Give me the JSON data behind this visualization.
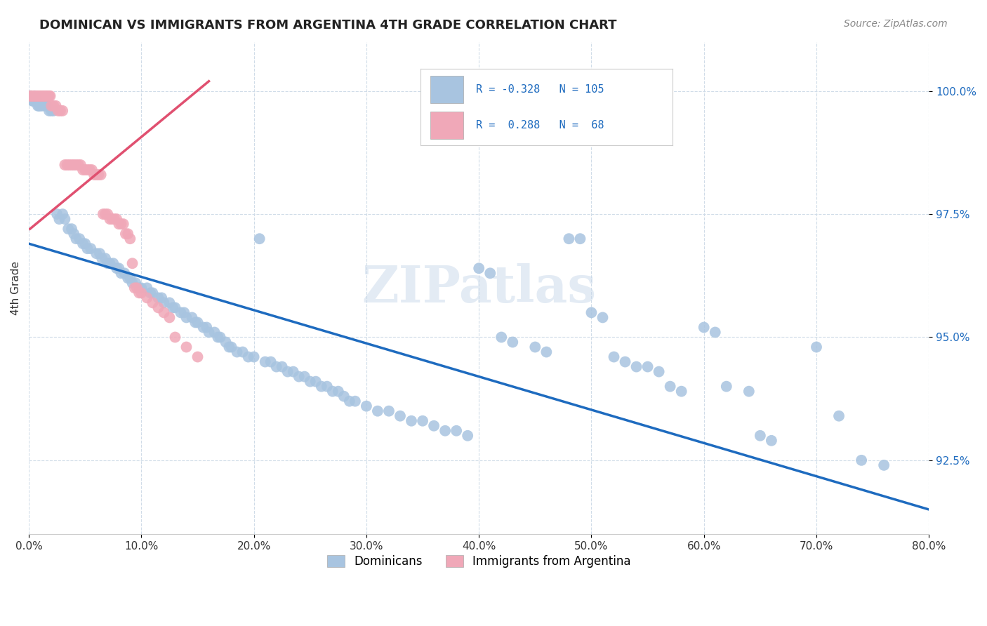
{
  "title": "DOMINICAN VS IMMIGRANTS FROM ARGENTINA 4TH GRADE CORRELATION CHART",
  "source": "Source: ZipAtlas.com",
  "ylabel": "4th Grade",
  "ytick_values": [
    0.925,
    0.95,
    0.975,
    1.0
  ],
  "xmin": 0.0,
  "xmax": 0.8,
  "ymin": 0.91,
  "ymax": 1.01,
  "blue_color": "#a8c4e0",
  "pink_color": "#f0a8b8",
  "blue_line_color": "#1e6bbf",
  "pink_line_color": "#e05070",
  "legend_text_color": "#1e6bbf",
  "watermark": "ZIPatlas",
  "blue_scatter": [
    [
      0.001,
      0.999
    ],
    [
      0.002,
      0.999
    ],
    [
      0.003,
      0.998
    ],
    [
      0.004,
      0.998
    ],
    [
      0.005,
      0.999
    ],
    [
      0.006,
      0.998
    ],
    [
      0.007,
      0.998
    ],
    [
      0.008,
      0.997
    ],
    [
      0.009,
      0.997
    ],
    [
      0.01,
      0.997
    ],
    [
      0.012,
      0.997
    ],
    [
      0.015,
      0.997
    ],
    [
      0.016,
      0.997
    ],
    [
      0.018,
      0.996
    ],
    [
      0.02,
      0.996
    ],
    [
      0.022,
      0.996
    ],
    [
      0.025,
      0.975
    ],
    [
      0.027,
      0.974
    ],
    [
      0.03,
      0.975
    ],
    [
      0.032,
      0.974
    ],
    [
      0.035,
      0.972
    ],
    [
      0.038,
      0.972
    ],
    [
      0.04,
      0.971
    ],
    [
      0.042,
      0.97
    ],
    [
      0.045,
      0.97
    ],
    [
      0.048,
      0.969
    ],
    [
      0.05,
      0.969
    ],
    [
      0.052,
      0.968
    ],
    [
      0.055,
      0.968
    ],
    [
      0.06,
      0.967
    ],
    [
      0.063,
      0.967
    ],
    [
      0.065,
      0.966
    ],
    [
      0.068,
      0.966
    ],
    [
      0.07,
      0.965
    ],
    [
      0.072,
      0.965
    ],
    [
      0.075,
      0.965
    ],
    [
      0.078,
      0.964
    ],
    [
      0.08,
      0.964
    ],
    [
      0.082,
      0.963
    ],
    [
      0.085,
      0.963
    ],
    [
      0.088,
      0.962
    ],
    [
      0.09,
      0.962
    ],
    [
      0.092,
      0.961
    ],
    [
      0.095,
      0.961
    ],
    [
      0.098,
      0.96
    ],
    [
      0.1,
      0.96
    ],
    [
      0.105,
      0.96
    ],
    [
      0.108,
      0.959
    ],
    [
      0.11,
      0.959
    ],
    [
      0.115,
      0.958
    ],
    [
      0.118,
      0.958
    ],
    [
      0.12,
      0.957
    ],
    [
      0.125,
      0.957
    ],
    [
      0.128,
      0.956
    ],
    [
      0.13,
      0.956
    ],
    [
      0.135,
      0.955
    ],
    [
      0.138,
      0.955
    ],
    [
      0.14,
      0.954
    ],
    [
      0.145,
      0.954
    ],
    [
      0.148,
      0.953
    ],
    [
      0.15,
      0.953
    ],
    [
      0.155,
      0.952
    ],
    [
      0.158,
      0.952
    ],
    [
      0.16,
      0.951
    ],
    [
      0.165,
      0.951
    ],
    [
      0.168,
      0.95
    ],
    [
      0.17,
      0.95
    ],
    [
      0.175,
      0.949
    ],
    [
      0.178,
      0.948
    ],
    [
      0.18,
      0.948
    ],
    [
      0.185,
      0.947
    ],
    [
      0.19,
      0.947
    ],
    [
      0.195,
      0.946
    ],
    [
      0.2,
      0.946
    ],
    [
      0.205,
      0.97
    ],
    [
      0.21,
      0.945
    ],
    [
      0.215,
      0.945
    ],
    [
      0.22,
      0.944
    ],
    [
      0.225,
      0.944
    ],
    [
      0.23,
      0.943
    ],
    [
      0.235,
      0.943
    ],
    [
      0.24,
      0.942
    ],
    [
      0.245,
      0.942
    ],
    [
      0.25,
      0.941
    ],
    [
      0.255,
      0.941
    ],
    [
      0.26,
      0.94
    ],
    [
      0.265,
      0.94
    ],
    [
      0.27,
      0.939
    ],
    [
      0.275,
      0.939
    ],
    [
      0.28,
      0.938
    ],
    [
      0.285,
      0.937
    ],
    [
      0.29,
      0.937
    ],
    [
      0.3,
      0.936
    ],
    [
      0.31,
      0.935
    ],
    [
      0.32,
      0.935
    ],
    [
      0.33,
      0.934
    ],
    [
      0.34,
      0.933
    ],
    [
      0.35,
      0.933
    ],
    [
      0.36,
      0.932
    ],
    [
      0.37,
      0.931
    ],
    [
      0.38,
      0.931
    ],
    [
      0.39,
      0.93
    ],
    [
      0.4,
      0.964
    ],
    [
      0.41,
      0.963
    ],
    [
      0.42,
      0.95
    ],
    [
      0.43,
      0.949
    ],
    [
      0.45,
      0.948
    ],
    [
      0.46,
      0.947
    ],
    [
      0.48,
      0.97
    ],
    [
      0.49,
      0.97
    ],
    [
      0.5,
      0.955
    ],
    [
      0.51,
      0.954
    ],
    [
      0.52,
      0.946
    ],
    [
      0.53,
      0.945
    ],
    [
      0.54,
      0.944
    ],
    [
      0.55,
      0.944
    ],
    [
      0.56,
      0.943
    ],
    [
      0.57,
      0.94
    ],
    [
      0.58,
      0.939
    ],
    [
      0.6,
      0.952
    ],
    [
      0.61,
      0.951
    ],
    [
      0.62,
      0.94
    ],
    [
      0.64,
      0.939
    ],
    [
      0.65,
      0.93
    ],
    [
      0.66,
      0.929
    ],
    [
      0.7,
      0.948
    ],
    [
      0.72,
      0.934
    ],
    [
      0.74,
      0.925
    ],
    [
      0.76,
      0.924
    ]
  ],
  "pink_scatter": [
    [
      0.001,
      0.999
    ],
    [
      0.002,
      0.999
    ],
    [
      0.003,
      0.999
    ],
    [
      0.004,
      0.999
    ],
    [
      0.005,
      0.999
    ],
    [
      0.006,
      0.999
    ],
    [
      0.007,
      0.999
    ],
    [
      0.008,
      0.999
    ],
    [
      0.009,
      0.999
    ],
    [
      0.01,
      0.999
    ],
    [
      0.011,
      0.999
    ],
    [
      0.012,
      0.999
    ],
    [
      0.013,
      0.999
    ],
    [
      0.014,
      0.999
    ],
    [
      0.015,
      0.999
    ],
    [
      0.016,
      0.999
    ],
    [
      0.017,
      0.999
    ],
    [
      0.018,
      0.999
    ],
    [
      0.019,
      0.999
    ],
    [
      0.02,
      0.997
    ],
    [
      0.022,
      0.997
    ],
    [
      0.024,
      0.997
    ],
    [
      0.026,
      0.996
    ],
    [
      0.028,
      0.996
    ],
    [
      0.03,
      0.996
    ],
    [
      0.032,
      0.985
    ],
    [
      0.034,
      0.985
    ],
    [
      0.036,
      0.985
    ],
    [
      0.038,
      0.985
    ],
    [
      0.04,
      0.985
    ],
    [
      0.042,
      0.985
    ],
    [
      0.044,
      0.985
    ],
    [
      0.046,
      0.985
    ],
    [
      0.048,
      0.984
    ],
    [
      0.05,
      0.984
    ],
    [
      0.052,
      0.984
    ],
    [
      0.054,
      0.984
    ],
    [
      0.056,
      0.984
    ],
    [
      0.058,
      0.983
    ],
    [
      0.06,
      0.983
    ],
    [
      0.062,
      0.983
    ],
    [
      0.064,
      0.983
    ],
    [
      0.066,
      0.975
    ],
    [
      0.068,
      0.975
    ],
    [
      0.07,
      0.975
    ],
    [
      0.072,
      0.974
    ],
    [
      0.074,
      0.974
    ],
    [
      0.076,
      0.974
    ],
    [
      0.078,
      0.974
    ],
    [
      0.08,
      0.973
    ],
    [
      0.082,
      0.973
    ],
    [
      0.084,
      0.973
    ],
    [
      0.086,
      0.971
    ],
    [
      0.088,
      0.971
    ],
    [
      0.09,
      0.97
    ],
    [
      0.092,
      0.965
    ],
    [
      0.094,
      0.96
    ],
    [
      0.096,
      0.96
    ],
    [
      0.098,
      0.959
    ],
    [
      0.1,
      0.959
    ],
    [
      0.105,
      0.958
    ],
    [
      0.11,
      0.957
    ],
    [
      0.115,
      0.956
    ],
    [
      0.12,
      0.955
    ],
    [
      0.125,
      0.954
    ],
    [
      0.13,
      0.95
    ],
    [
      0.14,
      0.948
    ],
    [
      0.15,
      0.946
    ]
  ],
  "blue_line_x": [
    0.0,
    0.8
  ],
  "blue_line_y": [
    0.969,
    0.915
  ],
  "pink_line_x": [
    0.001,
    0.16
  ],
  "pink_line_y": [
    0.972,
    1.002
  ]
}
